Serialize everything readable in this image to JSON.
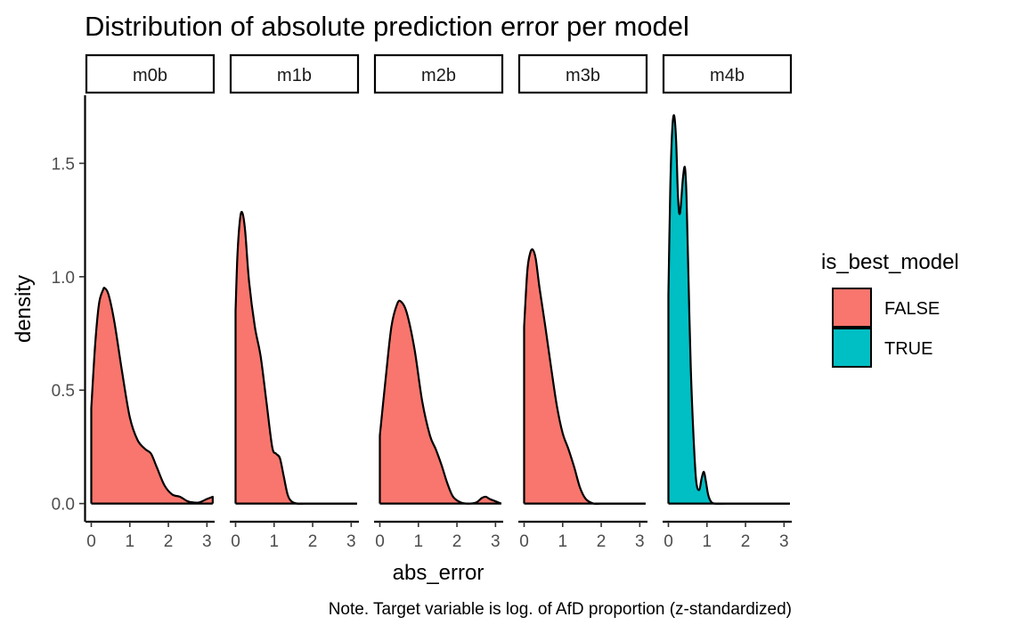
{
  "chart_data": {
    "type": "area",
    "subtype": "density-facets",
    "title": "Distribution of absolute prediction error per model",
    "xlabel": "abs_error",
    "ylabel": "density",
    "caption": "Note. Target variable is log. of AfD proportion (z-standardized)",
    "xlim": [
      -0.15,
      3.2
    ],
    "ylim": [
      -0.08,
      1.8
    ],
    "x_ticks": [
      0,
      1,
      2,
      3
    ],
    "y_ticks": [
      0.0,
      0.5,
      1.0,
      1.5
    ],
    "y_tick_labels": [
      "0.0",
      "0.5",
      "1.0",
      "1.5"
    ],
    "grid": false,
    "legend": {
      "title": "is_best_model",
      "position": "right",
      "entries": [
        {
          "label": "FALSE",
          "color": "#F8766D"
        },
        {
          "label": "TRUE",
          "color": "#00BFC4"
        }
      ]
    },
    "panels": [
      {
        "name": "m0b",
        "is_best_model": "FALSE",
        "x": [
          0,
          0.1,
          0.2,
          0.3,
          0.35,
          0.45,
          0.6,
          0.8,
          1.0,
          1.2,
          1.4,
          1.55,
          1.7,
          1.9,
          2.1,
          2.3,
          2.5,
          2.65,
          2.8,
          3.0,
          3.15
        ],
        "density": [
          0.42,
          0.7,
          0.88,
          0.94,
          0.95,
          0.92,
          0.8,
          0.58,
          0.38,
          0.28,
          0.24,
          0.22,
          0.16,
          0.08,
          0.04,
          0.03,
          0.01,
          0.005,
          0.005,
          0.02,
          0.03
        ]
      },
      {
        "name": "m1b",
        "is_best_model": "FALSE",
        "x": [
          0,
          0.05,
          0.12,
          0.18,
          0.25,
          0.35,
          0.5,
          0.65,
          0.8,
          0.95,
          1.05,
          1.15,
          1.25,
          1.35,
          1.45,
          1.6,
          1.8,
          2.2,
          2.6,
          3.15
        ],
        "density": [
          0.85,
          1.1,
          1.26,
          1.28,
          1.2,
          0.98,
          0.78,
          0.65,
          0.45,
          0.25,
          0.22,
          0.2,
          0.12,
          0.04,
          0.01,
          0.0,
          0.0,
          0.0,
          0.0,
          0.0
        ]
      },
      {
        "name": "m2b",
        "is_best_model": "FALSE",
        "x": [
          0,
          0.15,
          0.3,
          0.45,
          0.55,
          0.7,
          0.9,
          1.1,
          1.3,
          1.45,
          1.6,
          1.75,
          1.9,
          2.1,
          2.3,
          2.5,
          2.65,
          2.75,
          2.85,
          3.0,
          3.15
        ],
        "density": [
          0.3,
          0.55,
          0.78,
          0.88,
          0.89,
          0.84,
          0.68,
          0.45,
          0.3,
          0.24,
          0.17,
          0.09,
          0.03,
          0.005,
          0.0,
          0.005,
          0.025,
          0.03,
          0.02,
          0.01,
          0.0
        ],
        "highlight_bump": [
          2.5,
          3.1
        ]
      },
      {
        "name": "m3b",
        "is_best_model": "FALSE",
        "x": [
          0,
          0.08,
          0.15,
          0.22,
          0.3,
          0.4,
          0.55,
          0.7,
          0.85,
          1.0,
          1.15,
          1.3,
          1.45,
          1.6,
          1.8,
          2.0,
          2.5,
          3.15
        ],
        "density": [
          0.78,
          1.02,
          1.1,
          1.12,
          1.08,
          0.95,
          0.78,
          0.6,
          0.43,
          0.31,
          0.24,
          0.16,
          0.07,
          0.02,
          0.0,
          0.0,
          0.0,
          0.0
        ]
      },
      {
        "name": "m4b",
        "is_best_model": "TRUE",
        "x": [
          0,
          0.05,
          0.1,
          0.15,
          0.2,
          0.25,
          0.3,
          0.38,
          0.43,
          0.47,
          0.52,
          0.58,
          0.65,
          0.72,
          0.8,
          0.86,
          0.92,
          0.97,
          1.03,
          1.1,
          1.2,
          1.5,
          2.0,
          2.5,
          3.15
        ],
        "density": [
          0.92,
          1.4,
          1.65,
          1.71,
          1.6,
          1.35,
          1.28,
          1.44,
          1.48,
          1.35,
          1.0,
          0.6,
          0.3,
          0.1,
          0.06,
          0.11,
          0.14,
          0.1,
          0.04,
          0.01,
          0.0,
          0.0,
          0.0,
          0.0,
          0.0
        ]
      }
    ]
  }
}
